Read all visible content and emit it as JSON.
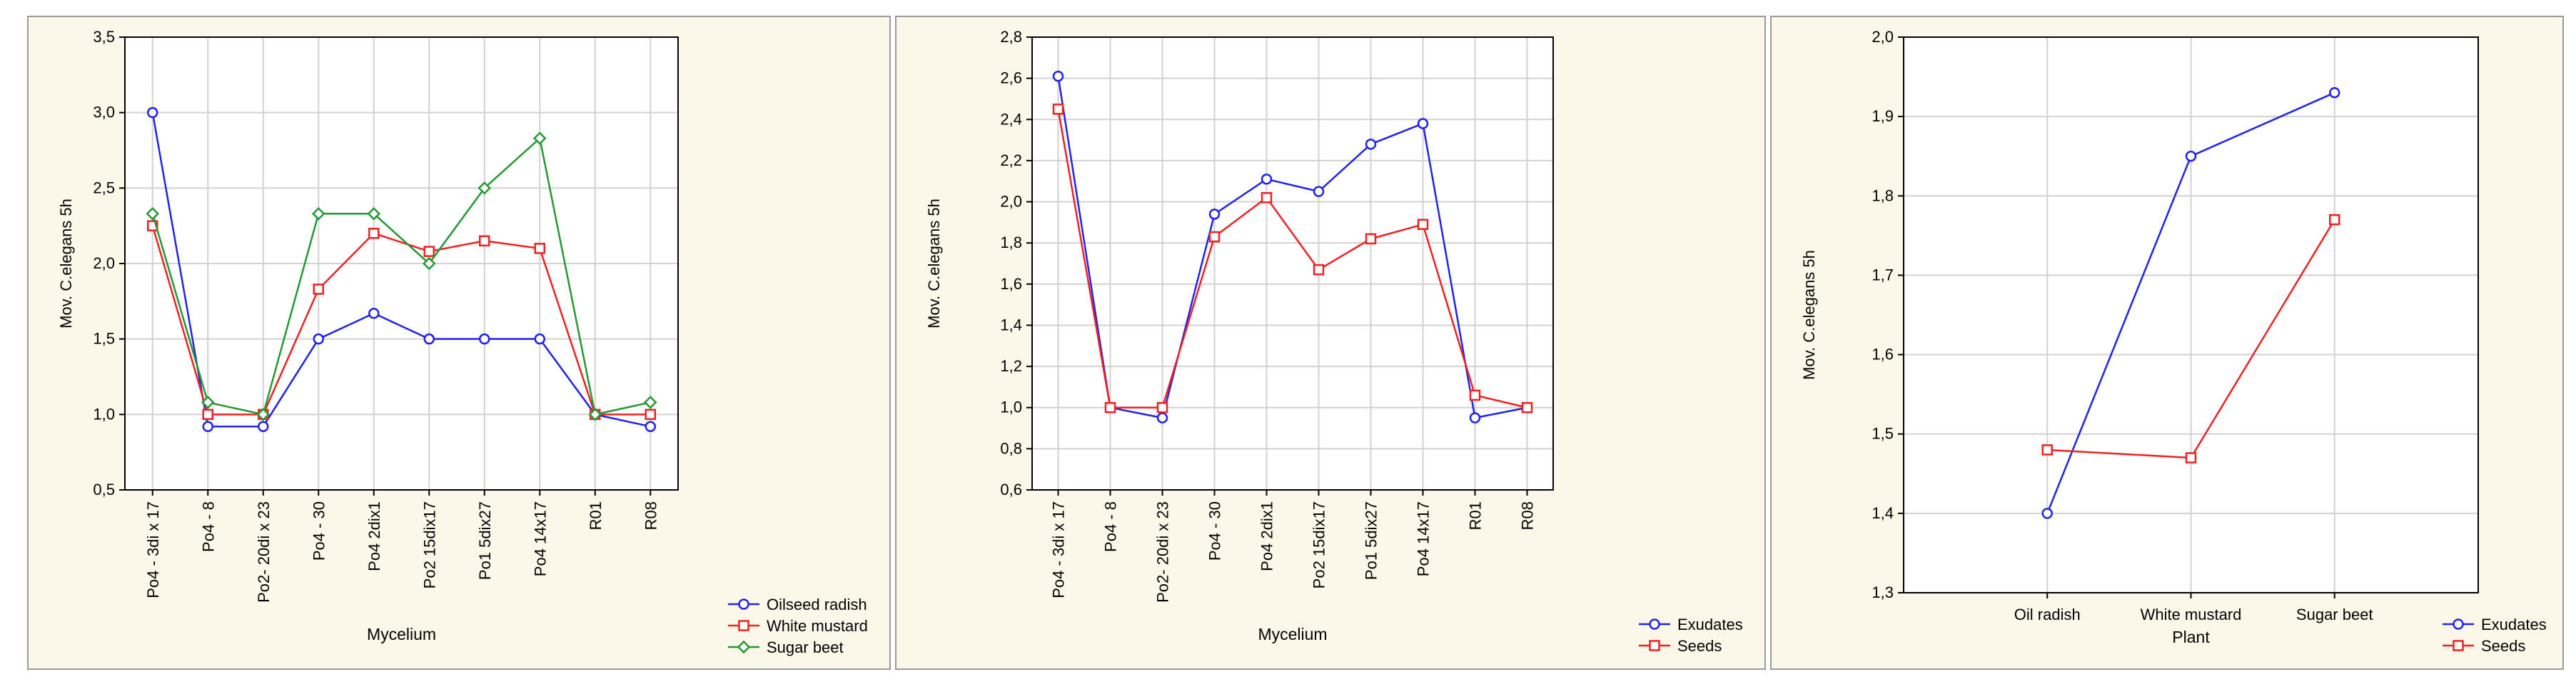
{
  "chart_data": [
    {
      "type": "line",
      "title": "",
      "xlabel": "Mycelium",
      "ylabel": "Mov. C.elegans 5h",
      "ylim": [
        0.5,
        3.5
      ],
      "yticks": [
        "0,5",
        "1,0",
        "1,5",
        "2,0",
        "2,5",
        "3,0",
        "3,5"
      ],
      "categories": [
        "Po4 - 3di x 17",
        "Po4 - 8",
        "Po2- 20di x 23",
        "Po4 - 30",
        "Po4 2dix1",
        "Po2 15dix17",
        "Po1 5dix27",
        "Po4 14x17",
        "R01",
        "R08"
      ],
      "grid": true,
      "legend_position": "bottom-right",
      "series": [
        {
          "name": "Oilseed radish",
          "color": "#2222ee",
          "marker": "circle",
          "values": [
            3.0,
            0.92,
            0.92,
            1.5,
            1.67,
            1.5,
            1.5,
            1.5,
            1.0,
            0.92
          ]
        },
        {
          "name": "White mustard",
          "color": "#ee2222",
          "marker": "square",
          "values": [
            2.25,
            1.0,
            1.0,
            1.83,
            2.2,
            2.08,
            2.15,
            2.1,
            1.0,
            1.0
          ]
        },
        {
          "name": "Sugar beet",
          "color": "#229933",
          "marker": "diamond",
          "values": [
            2.33,
            1.08,
            1.0,
            2.33,
            2.33,
            2.0,
            2.5,
            2.83,
            1.0,
            1.08
          ]
        }
      ]
    },
    {
      "type": "line",
      "title": "",
      "xlabel": "Mycelium",
      "ylabel": "Mov. C.elegans 5h",
      "ylim": [
        0.6,
        2.8
      ],
      "yticks": [
        "0,6",
        "0,8",
        "1,0",
        "1,2",
        "1,4",
        "1,6",
        "1,8",
        "2,0",
        "2,2",
        "2,4",
        "2,6",
        "2,8"
      ],
      "categories": [
        "Po4 - 3di x 17",
        "Po4 - 8",
        "Po2- 20di x 23",
        "Po4 - 30",
        "Po4 2dix1",
        "Po2 15dix17",
        "Po1 5dix27",
        "Po4 14x17",
        "R01",
        "R08"
      ],
      "grid": true,
      "legend_position": "bottom-right",
      "series": [
        {
          "name": "Exudates",
          "color": "#2222ee",
          "marker": "circle",
          "values": [
            2.61,
            1.0,
            0.95,
            1.94,
            2.11,
            2.05,
            2.28,
            2.38,
            0.95,
            1.0
          ]
        },
        {
          "name": "Seeds",
          "color": "#ee2222",
          "marker": "square",
          "values": [
            2.45,
            1.0,
            1.0,
            1.83,
            2.02,
            1.67,
            1.82,
            1.89,
            1.06,
            1.0
          ]
        }
      ]
    },
    {
      "type": "line",
      "title": "",
      "xlabel": "Plant",
      "ylabel": "Mov. C.elegans 5h",
      "ylim": [
        1.3,
        2.0
      ],
      "yticks": [
        "1,3",
        "1,4",
        "1,5",
        "1,6",
        "1,7",
        "1,8",
        "1,9",
        "2,0"
      ],
      "categories": [
        "Oil radish",
        "White mustard",
        "Sugar beet"
      ],
      "grid": true,
      "legend_position": "bottom-right",
      "series": [
        {
          "name": "Exudates",
          "color": "#2222ee",
          "marker": "circle",
          "values": [
            1.4,
            1.85,
            1.93
          ]
        },
        {
          "name": "Seeds",
          "color": "#ee2222",
          "marker": "square",
          "values": [
            1.48,
            1.47,
            1.77
          ]
        }
      ]
    }
  ]
}
